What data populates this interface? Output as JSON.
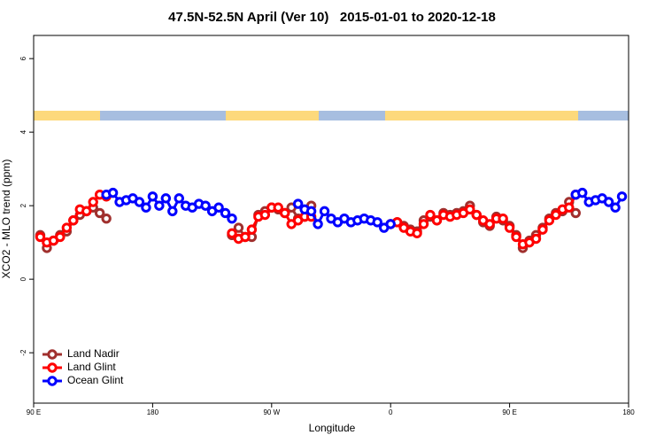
{
  "chart_data": {
    "type": "line",
    "title": "47.5N-52.5N April (Ver 10)   2015-01-01 to 2020-12-18",
    "xlabel": "Longitude",
    "ylabel": "XCO2 - MLO trend (ppm)",
    "xlim": [
      90,
      540
    ],
    "ylim": [
      -3.37,
      6.63
    ],
    "xticks": [
      {
        "value": 90,
        "label": "90 E"
      },
      180,
      {
        "value": 270,
        "label": "90 W"
      },
      {
        "value": 360,
        "label": "0"
      },
      {
        "value": 450,
        "label": "90 E"
      },
      {
        "value": 540,
        "label": "180"
      }
    ],
    "yticks": [
      -2,
      0,
      2,
      4,
      6
    ],
    "legend": "lower left",
    "series": [
      {
        "name": "Land Nadir",
        "color": "#a0302e",
        "x": [
          95,
          100,
          105,
          110,
          115,
          120,
          125,
          130,
          135,
          140,
          145,
          150,
          240,
          245,
          250,
          255,
          260,
          265,
          270,
          275,
          280,
          285,
          290,
          295,
          300,
          305,
          360,
          365,
          370,
          375,
          380,
          385,
          390,
          395,
          400,
          405,
          410,
          415,
          420,
          425,
          430,
          435,
          440,
          445,
          450,
          455,
          460,
          465,
          470,
          475,
          480,
          485,
          490,
          495,
          500
        ],
        "values": [
          1.2,
          0.85,
          1.05,
          1.2,
          1.3,
          1.6,
          1.75,
          1.85,
          1.95,
          1.8,
          1.65,
          null,
          1.2,
          1.4,
          1.15,
          1.15,
          1.75,
          1.85,
          1.95,
          1.9,
          1.8,
          1.95,
          1.65,
          1.7,
          2.0,
          null,
          1.5,
          1.55,
          1.45,
          1.35,
          1.3,
          1.6,
          1.7,
          1.6,
          1.8,
          1.75,
          1.8,
          1.85,
          2.0,
          1.75,
          1.55,
          1.45,
          1.7,
          1.6,
          1.45,
          1.2,
          0.85,
          1.05,
          1.2,
          1.4,
          1.65,
          1.8,
          1.85,
          2.1,
          1.8
        ]
      },
      {
        "name": "Land Glint",
        "color": "#ff0000",
        "x": [
          95,
          100,
          105,
          110,
          115,
          120,
          125,
          130,
          135,
          140,
          145,
          150,
          240,
          245,
          250,
          255,
          260,
          265,
          270,
          275,
          280,
          285,
          290,
          295,
          300,
          305,
          360,
          365,
          370,
          375,
          380,
          385,
          390,
          395,
          400,
          405,
          410,
          415,
          420,
          425,
          430,
          435,
          440,
          445,
          450,
          455,
          460,
          465,
          470,
          475,
          480,
          485,
          490,
          495,
          500
        ],
        "values": [
          1.15,
          1.0,
          1.05,
          1.15,
          1.4,
          1.6,
          1.9,
          1.85,
          2.1,
          2.3,
          2.25,
          null,
          1.25,
          1.1,
          1.15,
          1.35,
          1.7,
          1.75,
          1.95,
          1.95,
          1.8,
          1.5,
          1.6,
          1.7,
          1.7,
          null,
          1.5,
          1.55,
          1.4,
          1.3,
          1.25,
          1.5,
          1.75,
          1.6,
          1.75,
          1.7,
          1.75,
          1.8,
          1.9,
          1.75,
          1.6,
          1.5,
          1.65,
          1.65,
          1.4,
          1.15,
          0.95,
          1.0,
          1.1,
          1.35,
          1.6,
          1.75,
          1.9,
          1.95,
          2.3
        ]
      },
      {
        "name": "Ocean Glint",
        "color": "#0000ff",
        "x": [
          145,
          150,
          155,
          160,
          165,
          170,
          175,
          180,
          185,
          190,
          195,
          200,
          205,
          210,
          215,
          220,
          225,
          230,
          235,
          240,
          245,
          290,
          295,
          300,
          305,
          310,
          315,
          320,
          325,
          330,
          335,
          340,
          345,
          350,
          355,
          360,
          365,
          500,
          505,
          510,
          515,
          520,
          525,
          530,
          535
        ],
        "values": [
          2.3,
          2.35,
          2.1,
          2.15,
          2.2,
          2.1,
          1.95,
          2.25,
          2.0,
          2.2,
          1.85,
          2.2,
          2.0,
          1.95,
          2.05,
          2.0,
          1.85,
          1.95,
          1.8,
          1.65,
          null,
          2.05,
          1.9,
          1.85,
          1.5,
          1.85,
          1.65,
          1.55,
          1.65,
          1.55,
          1.6,
          1.65,
          1.6,
          1.55,
          1.4,
          1.5,
          null,
          2.3,
          2.35,
          2.1,
          2.15,
          2.2,
          2.1,
          1.95,
          2.25
        ]
      }
    ]
  }
}
